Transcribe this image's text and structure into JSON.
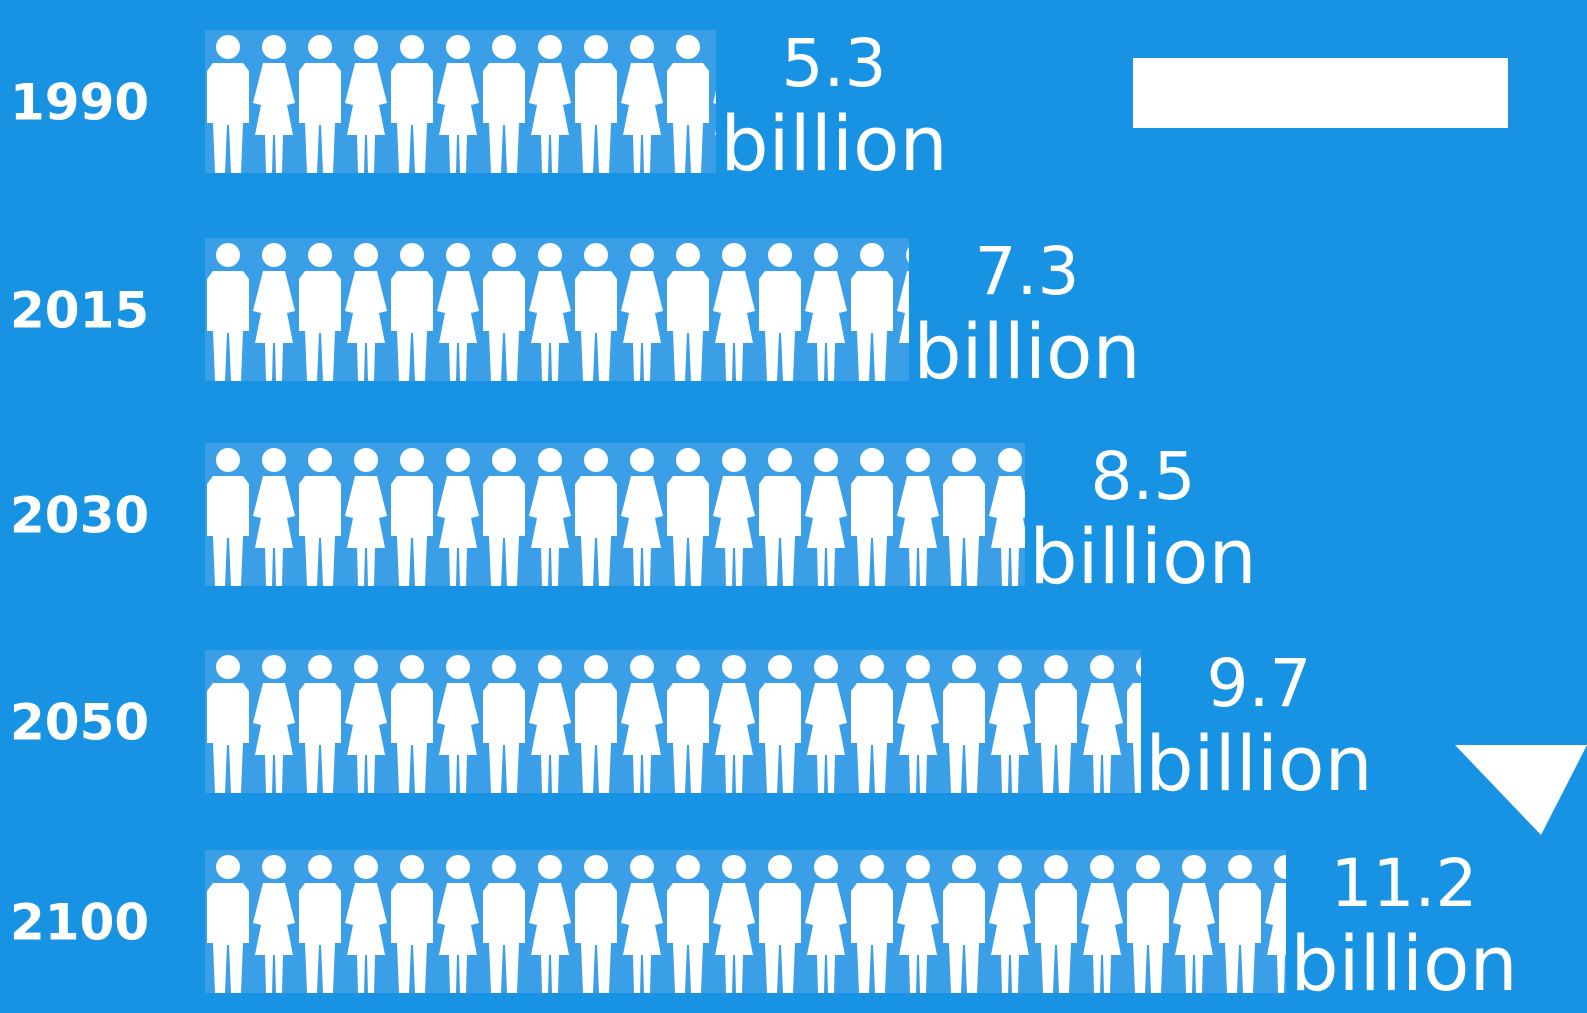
{
  "chart_data": {
    "type": "bar",
    "orientation": "horizontal",
    "categories": [
      "1990",
      "2015",
      "2030",
      "2050",
      "2100"
    ],
    "values": [
      5.3,
      7.3,
      8.5,
      9.7,
      11.2
    ],
    "value_labels": [
      "5.3",
      "7.3",
      "8.5",
      "9.7",
      "11.2"
    ],
    "unit_label": "billion",
    "marks": "pictogram-people",
    "colors": {
      "background": "#1893e3",
      "figures": "#ffffff",
      "strip": "#3a9fe6",
      "arrow": "#ffffff"
    }
  },
  "decoration": {
    "arrow_icon": "down-arrow-icon"
  }
}
